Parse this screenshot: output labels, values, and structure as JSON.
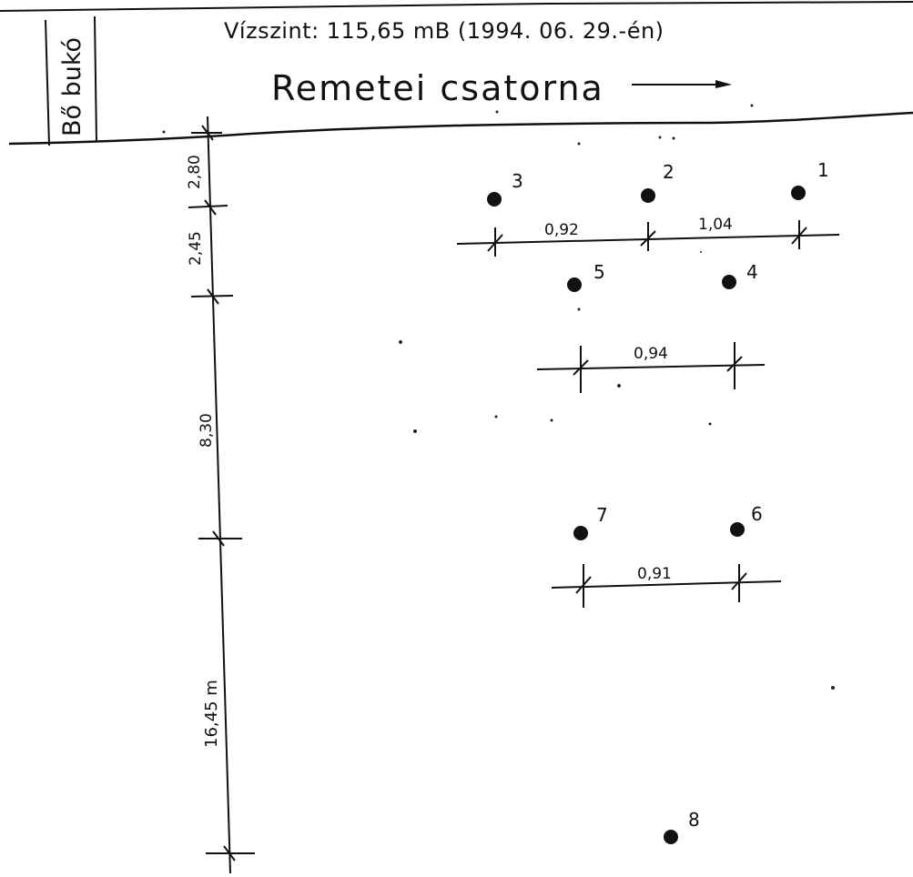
{
  "header": {
    "weir_label": "Bő bukó",
    "water_level": "Vízszint: 115,65 mB  (1994. 06. 29.-én)",
    "canal_name": "Remetei csatorna"
  },
  "vertical_dimensions": [
    "2,80",
    "2,45",
    "8,30",
    "16,45 m"
  ],
  "horizontal_dimensions": [
    "0,92",
    "1,04",
    "0,94",
    "0,91"
  ],
  "points": [
    "1",
    "2",
    "3",
    "4",
    "5",
    "6",
    "7",
    "8"
  ],
  "colors": {
    "ink": "#111111",
    "paper": "#ffffff"
  }
}
